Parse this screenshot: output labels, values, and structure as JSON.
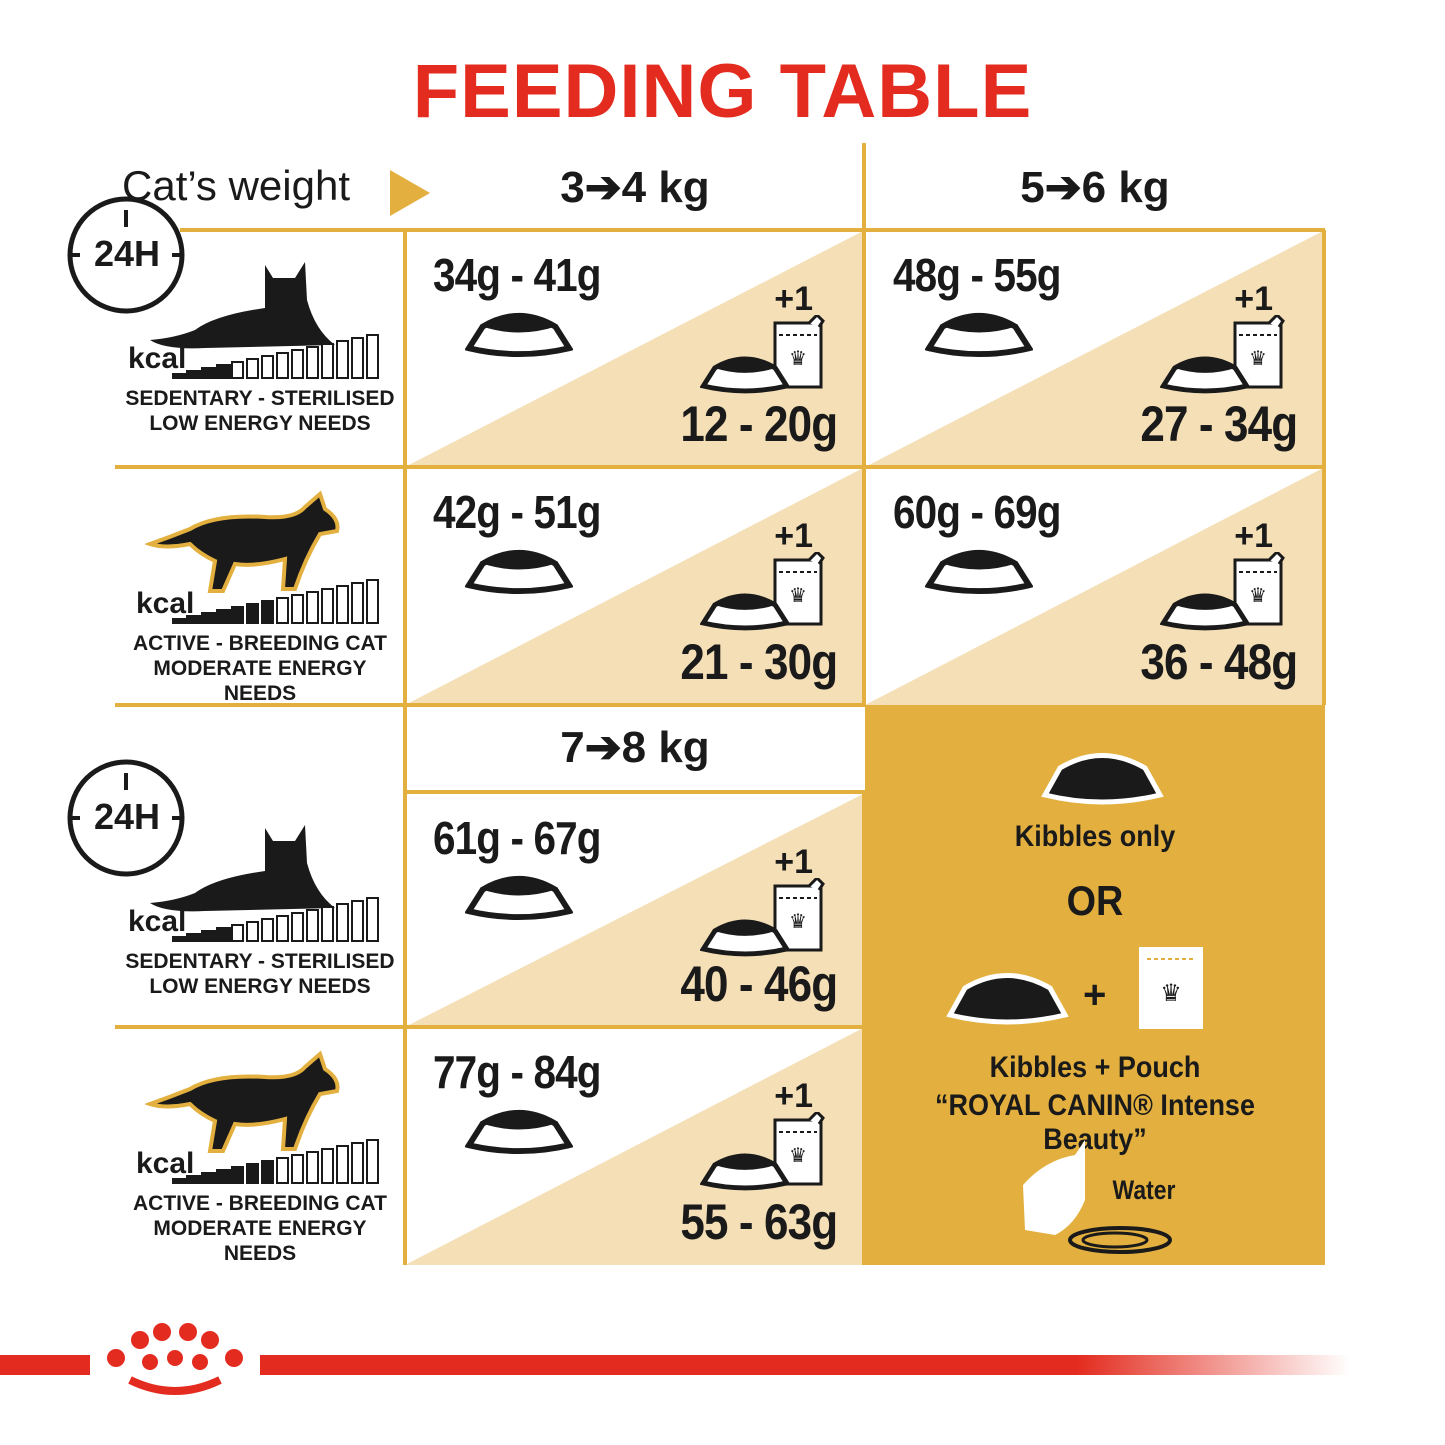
{
  "title": "FEEDING TABLE",
  "header": {
    "cats_weight": "Cat’s weight",
    "col1": "3➔4 kg",
    "col2": "5➔6 kg",
    "col3": "7➔8 kg"
  },
  "badge": "24H",
  "kcal": "kcal",
  "profiles": [
    {
      "line1": "SEDENTARY - STERILISED",
      "line2": "LOW ENERGY NEEDS",
      "icon": "lying-cat-icon"
    },
    {
      "line1": "ACTIVE - BREEDING CAT",
      "line2": "MODERATE ENERGY NEEDS",
      "icon": "walking-cat-icon"
    }
  ],
  "plus_one": "+1",
  "cells": [
    {
      "weight": "3➔4 kg",
      "profile": "sedentary",
      "kibbles": "34g - 41g",
      "wet": "12 - 20g"
    },
    {
      "weight": "5➔6 kg",
      "profile": "sedentary",
      "kibbles": "48g - 55g",
      "wet": "27 - 34g"
    },
    {
      "weight": "3➔4 kg",
      "profile": "active",
      "kibbles": "42g - 51g",
      "wet": "21 - 30g"
    },
    {
      "weight": "5➔6 kg",
      "profile": "active",
      "kibbles": "60g - 69g",
      "wet": "36 - 48g"
    },
    {
      "weight": "7➔8 kg",
      "profile": "sedentary",
      "kibbles": "61g - 67g",
      "wet": "40 - 46g"
    },
    {
      "weight": "7➔8 kg",
      "profile": "active",
      "kibbles": "77g - 84g",
      "wet": "55 - 63g"
    }
  ],
  "legend": {
    "kibbles_only": "Kibbles only",
    "or": "OR",
    "plus": "+",
    "kibbles_pouch": "Kibbles + Pouch",
    "product": "“ROYAL CANIN® Intense Beauty”",
    "water": "Water"
  },
  "colors": {
    "red": "#e32c1f",
    "gold": "#e3b03f",
    "beige": "#f4dfb6",
    "black": "#1a1a1a"
  }
}
